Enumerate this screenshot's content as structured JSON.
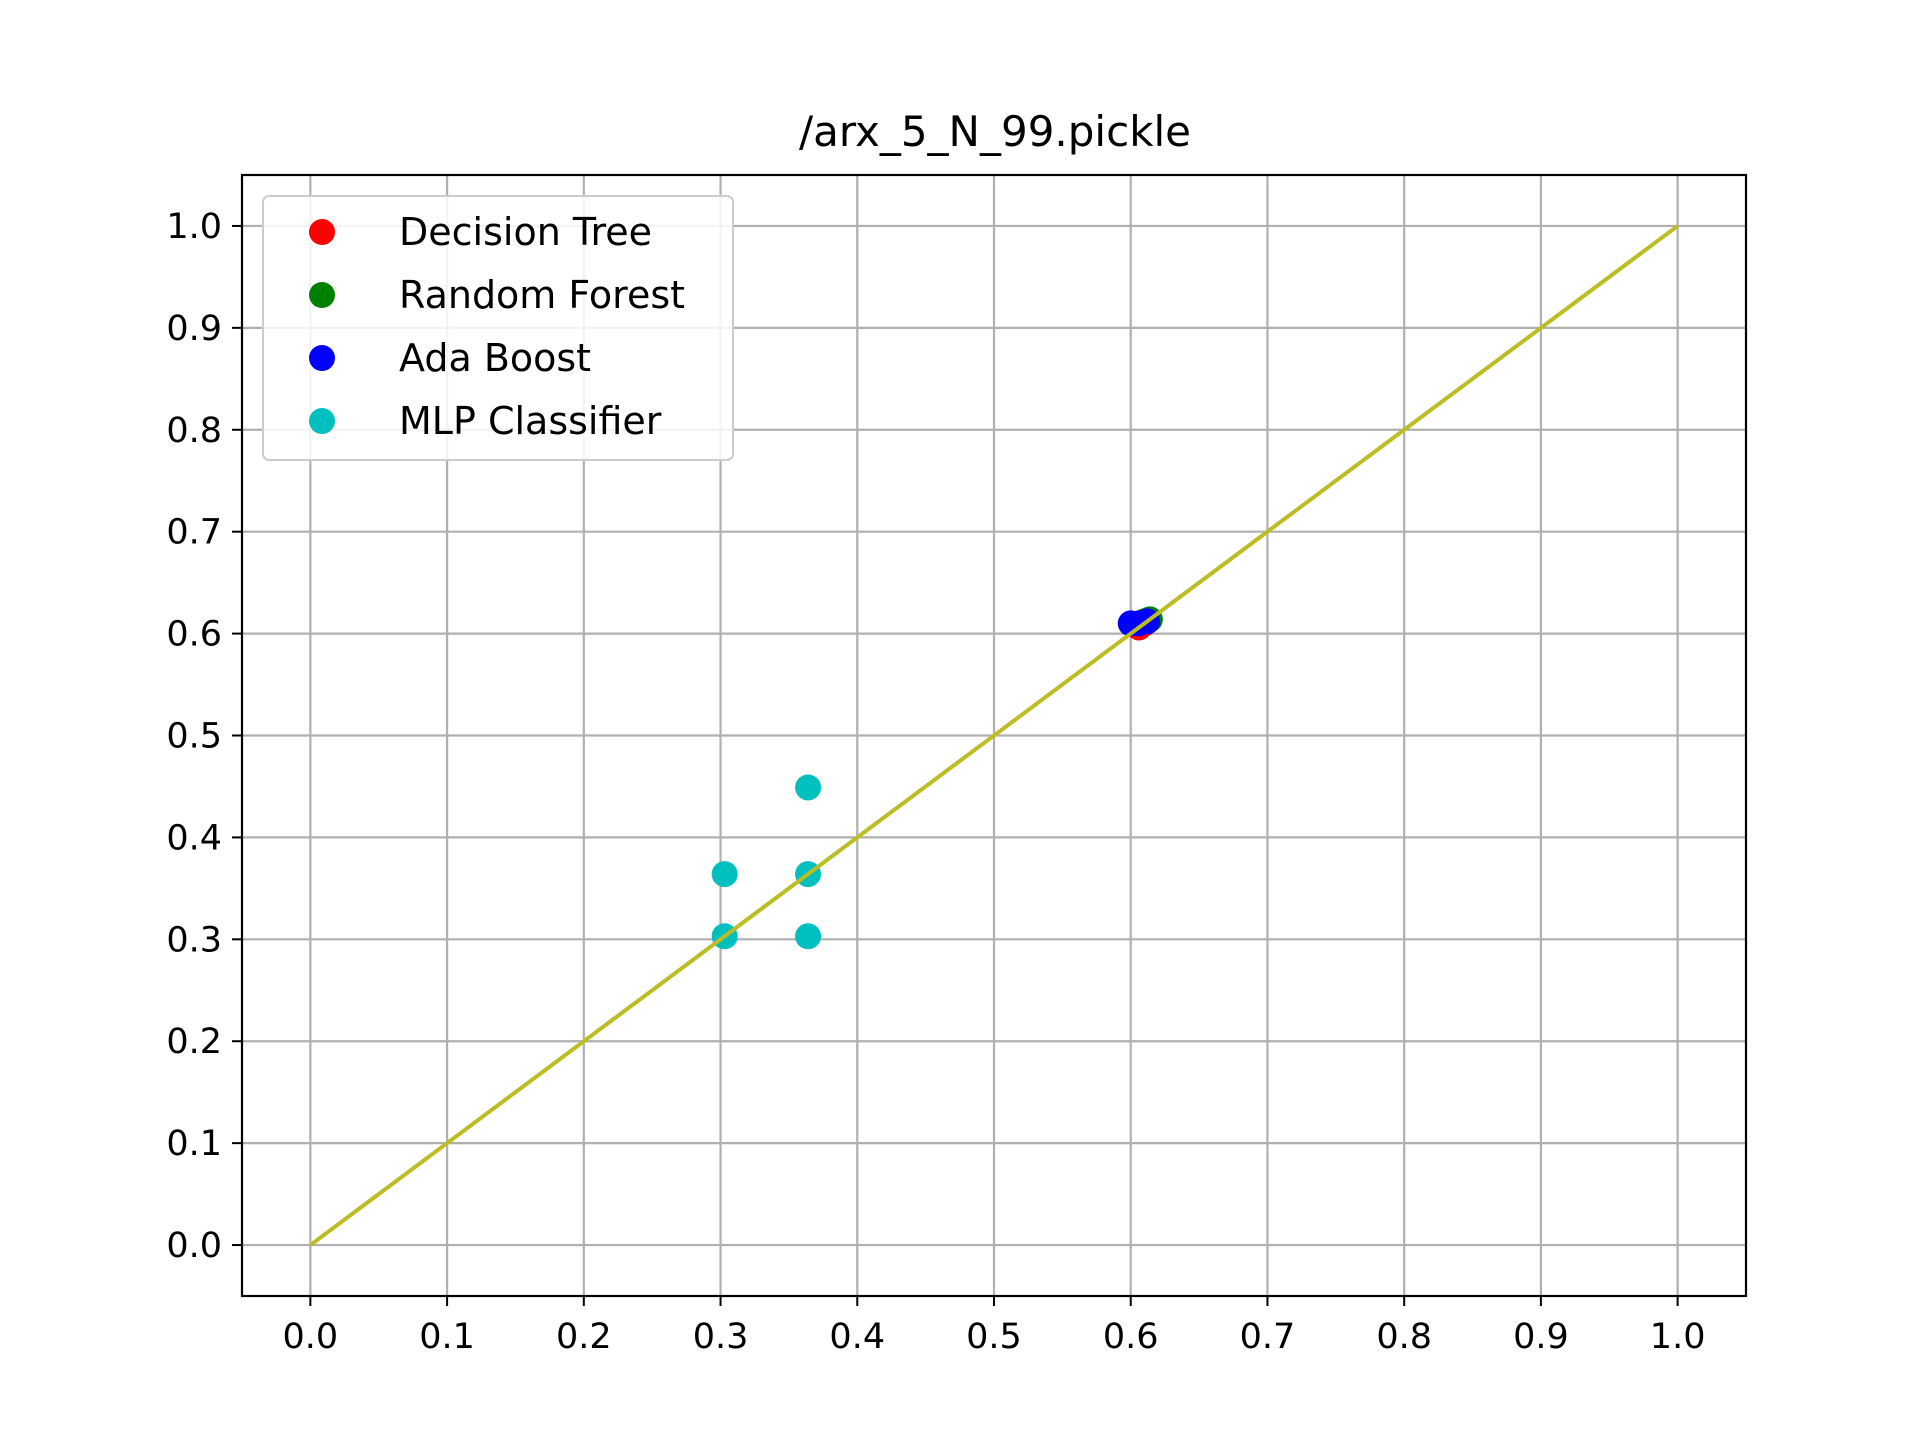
{
  "chart_data": {
    "type": "scatter",
    "title": "/arx_5_N_99.pickle",
    "xlabel": "",
    "ylabel": "",
    "xlim": [
      -0.05,
      1.05
    ],
    "ylim": [
      -0.05,
      1.05
    ],
    "x_ticks": [
      "0.0",
      "0.1",
      "0.2",
      "0.3",
      "0.4",
      "0.5",
      "0.6",
      "0.7",
      "0.8",
      "0.9",
      "1.0"
    ],
    "y_ticks": [
      "0.0",
      "0.1",
      "0.2",
      "0.3",
      "0.4",
      "0.5",
      "0.6",
      "0.7",
      "0.8",
      "0.9",
      "1.0"
    ],
    "grid": true,
    "legend_position": "top-left",
    "series": [
      {
        "name": "Decision Tree",
        "color": "#ff0000",
        "points": [
          [
            0.606,
            0.606
          ],
          [
            0.61,
            0.61
          ]
        ]
      },
      {
        "name": "Random Forest",
        "color": "#008000",
        "points": [
          [
            0.614,
            0.614
          ],
          [
            0.61,
            0.612
          ]
        ]
      },
      {
        "name": "Ada Boost",
        "color": "#0000ff",
        "points": [
          [
            0.6,
            0.61
          ],
          [
            0.606,
            0.61
          ],
          [
            0.612,
            0.612
          ]
        ]
      },
      {
        "name": "MLP Classifier",
        "color": "#00bfbf",
        "points": [
          [
            0.303,
            0.303
          ],
          [
            0.303,
            0.364
          ],
          [
            0.364,
            0.364
          ],
          [
            0.364,
            0.303
          ],
          [
            0.364,
            0.449
          ]
        ]
      }
    ],
    "reference_line": {
      "color": "#bcbd22",
      "points": [
        [
          0,
          0
        ],
        [
          1,
          1
        ]
      ]
    }
  }
}
